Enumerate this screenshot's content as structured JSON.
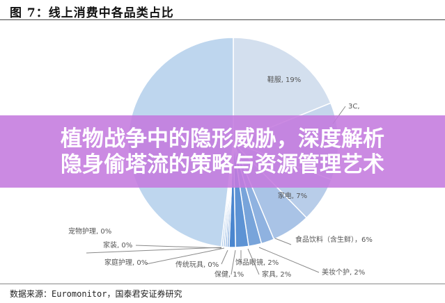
{
  "header": {
    "title": "图 7：线上消费中各品类占比"
  },
  "footer": {
    "source": "数据来源：Euromonitor，国泰君安证券研究"
  },
  "banner": {
    "line1": "植物战争中的隐形威胁，深度解析",
    "line2": "隐身偷塔流的策略与资源管理艺术",
    "color": "#c47ade"
  },
  "chart_data": {
    "type": "pie",
    "title": "",
    "start": "12 o'clock, clockwise",
    "slices": [
      {
        "name": "鞋服",
        "value": 19,
        "label": "鞋服, 19%",
        "color": "#d3dfee"
      },
      {
        "name": "3C",
        "value": 12,
        "label": "3C,",
        "color": "#c5d6ec"
      },
      {
        "name": "家电",
        "value": 7,
        "label": "家电, 7%",
        "color": "#b8cde9"
      },
      {
        "name": "食品饮料（含生鲜）",
        "value": 6,
        "label": "食品饮料（含生鲜），6%",
        "color": "#a9c3e6"
      },
      {
        "name": "美妆个护",
        "value": 2,
        "label": "美妆个护, 2%",
        "color": "#8fb2e0"
      },
      {
        "name": "家具",
        "value": 2,
        "label": "家具, 2%",
        "color": "#78a4da"
      },
      {
        "name": "饰品眼镜",
        "value": 2,
        "label": "饰品眼镜, 2%",
        "color": "#5d93d4"
      },
      {
        "name": "保健",
        "value": 1,
        "label": "保健, 1%",
        "color": "#4a86cf"
      },
      {
        "name": "传统玩具",
        "value": 0.3,
        "label": "传统玩具, 0%",
        "color": "#6b9bd6"
      },
      {
        "name": "家庭护理",
        "value": 0.3,
        "label": "家庭护理, 0%",
        "color": "#8ab0df"
      },
      {
        "name": "家装",
        "value": 0.3,
        "label": "家装, 0%",
        "color": "#a3c2e6"
      },
      {
        "name": "宠物护理",
        "value": 0.3,
        "label": "宠物护理, 0%",
        "color": "#b3cdea"
      },
      {
        "name": "",
        "value": 48.5,
        "label": "",
        "color": "#bed6ee"
      }
    ]
  }
}
